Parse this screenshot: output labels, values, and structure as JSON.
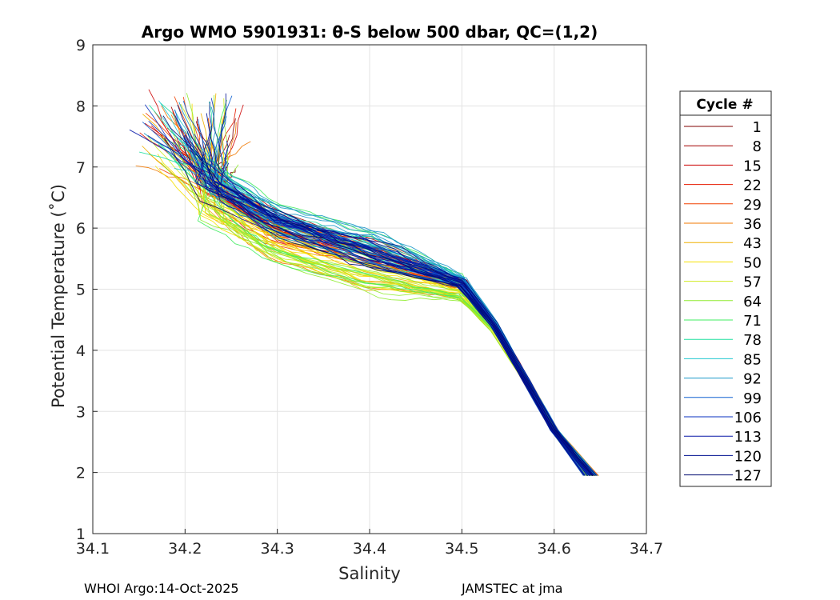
{
  "chart_data": {
    "type": "line",
    "title": "Argo WMO 5901931: θ-S below 500 dbar,  QC=(1,2)",
    "xlabel": "Salinity",
    "ylabel": "Potential Temperature (˚C)",
    "xlim": [
      34.1,
      34.7
    ],
    "ylim": [
      1,
      9
    ],
    "xticks": [
      "34.1",
      "34.2",
      "34.3",
      "34.4",
      "34.5",
      "34.6",
      "34.7"
    ],
    "yticks": [
      "1",
      "2",
      "3",
      "4",
      "5",
      "6",
      "7",
      "8",
      "9"
    ],
    "grid": true,
    "legend_title": "Cycle #",
    "legend_position": "right",
    "legend": [
      "1",
      "8",
      "15",
      "22",
      "29",
      "36",
      "43",
      "50",
      "57",
      "64",
      "71",
      "78",
      "85",
      "92",
      "99",
      "106",
      "113",
      "120",
      "127"
    ],
    "legend_colors": [
      "#7f0000",
      "#a30000",
      "#cc0000",
      "#e61a00",
      "#f04000",
      "#f07800",
      "#f0b000",
      "#f5e000",
      "#d0ec20",
      "#90ec30",
      "#40ec60",
      "#20e0a0",
      "#20c8d0",
      "#1898c8",
      "#1060d0",
      "#0830c0",
      "#0818a8",
      "#001090",
      "#000a70"
    ],
    "series_shape": {
      "deep_end": {
        "S": [
          34.6,
          34.64
        ],
        "theta": [
          1.9,
          2.0
        ]
      },
      "knee": {
        "S": [
          34.5,
          34.53
        ],
        "theta": [
          4.6,
          5.0
        ]
      },
      "surface_start": {
        "S": [
          34.13,
          34.29
        ],
        "theta": [
          6.8,
          8.3
        ]
      }
    }
  },
  "footer": {
    "left": "WHOI Argo:14-Oct-2025",
    "right": "JAMSTEC at jma"
  }
}
